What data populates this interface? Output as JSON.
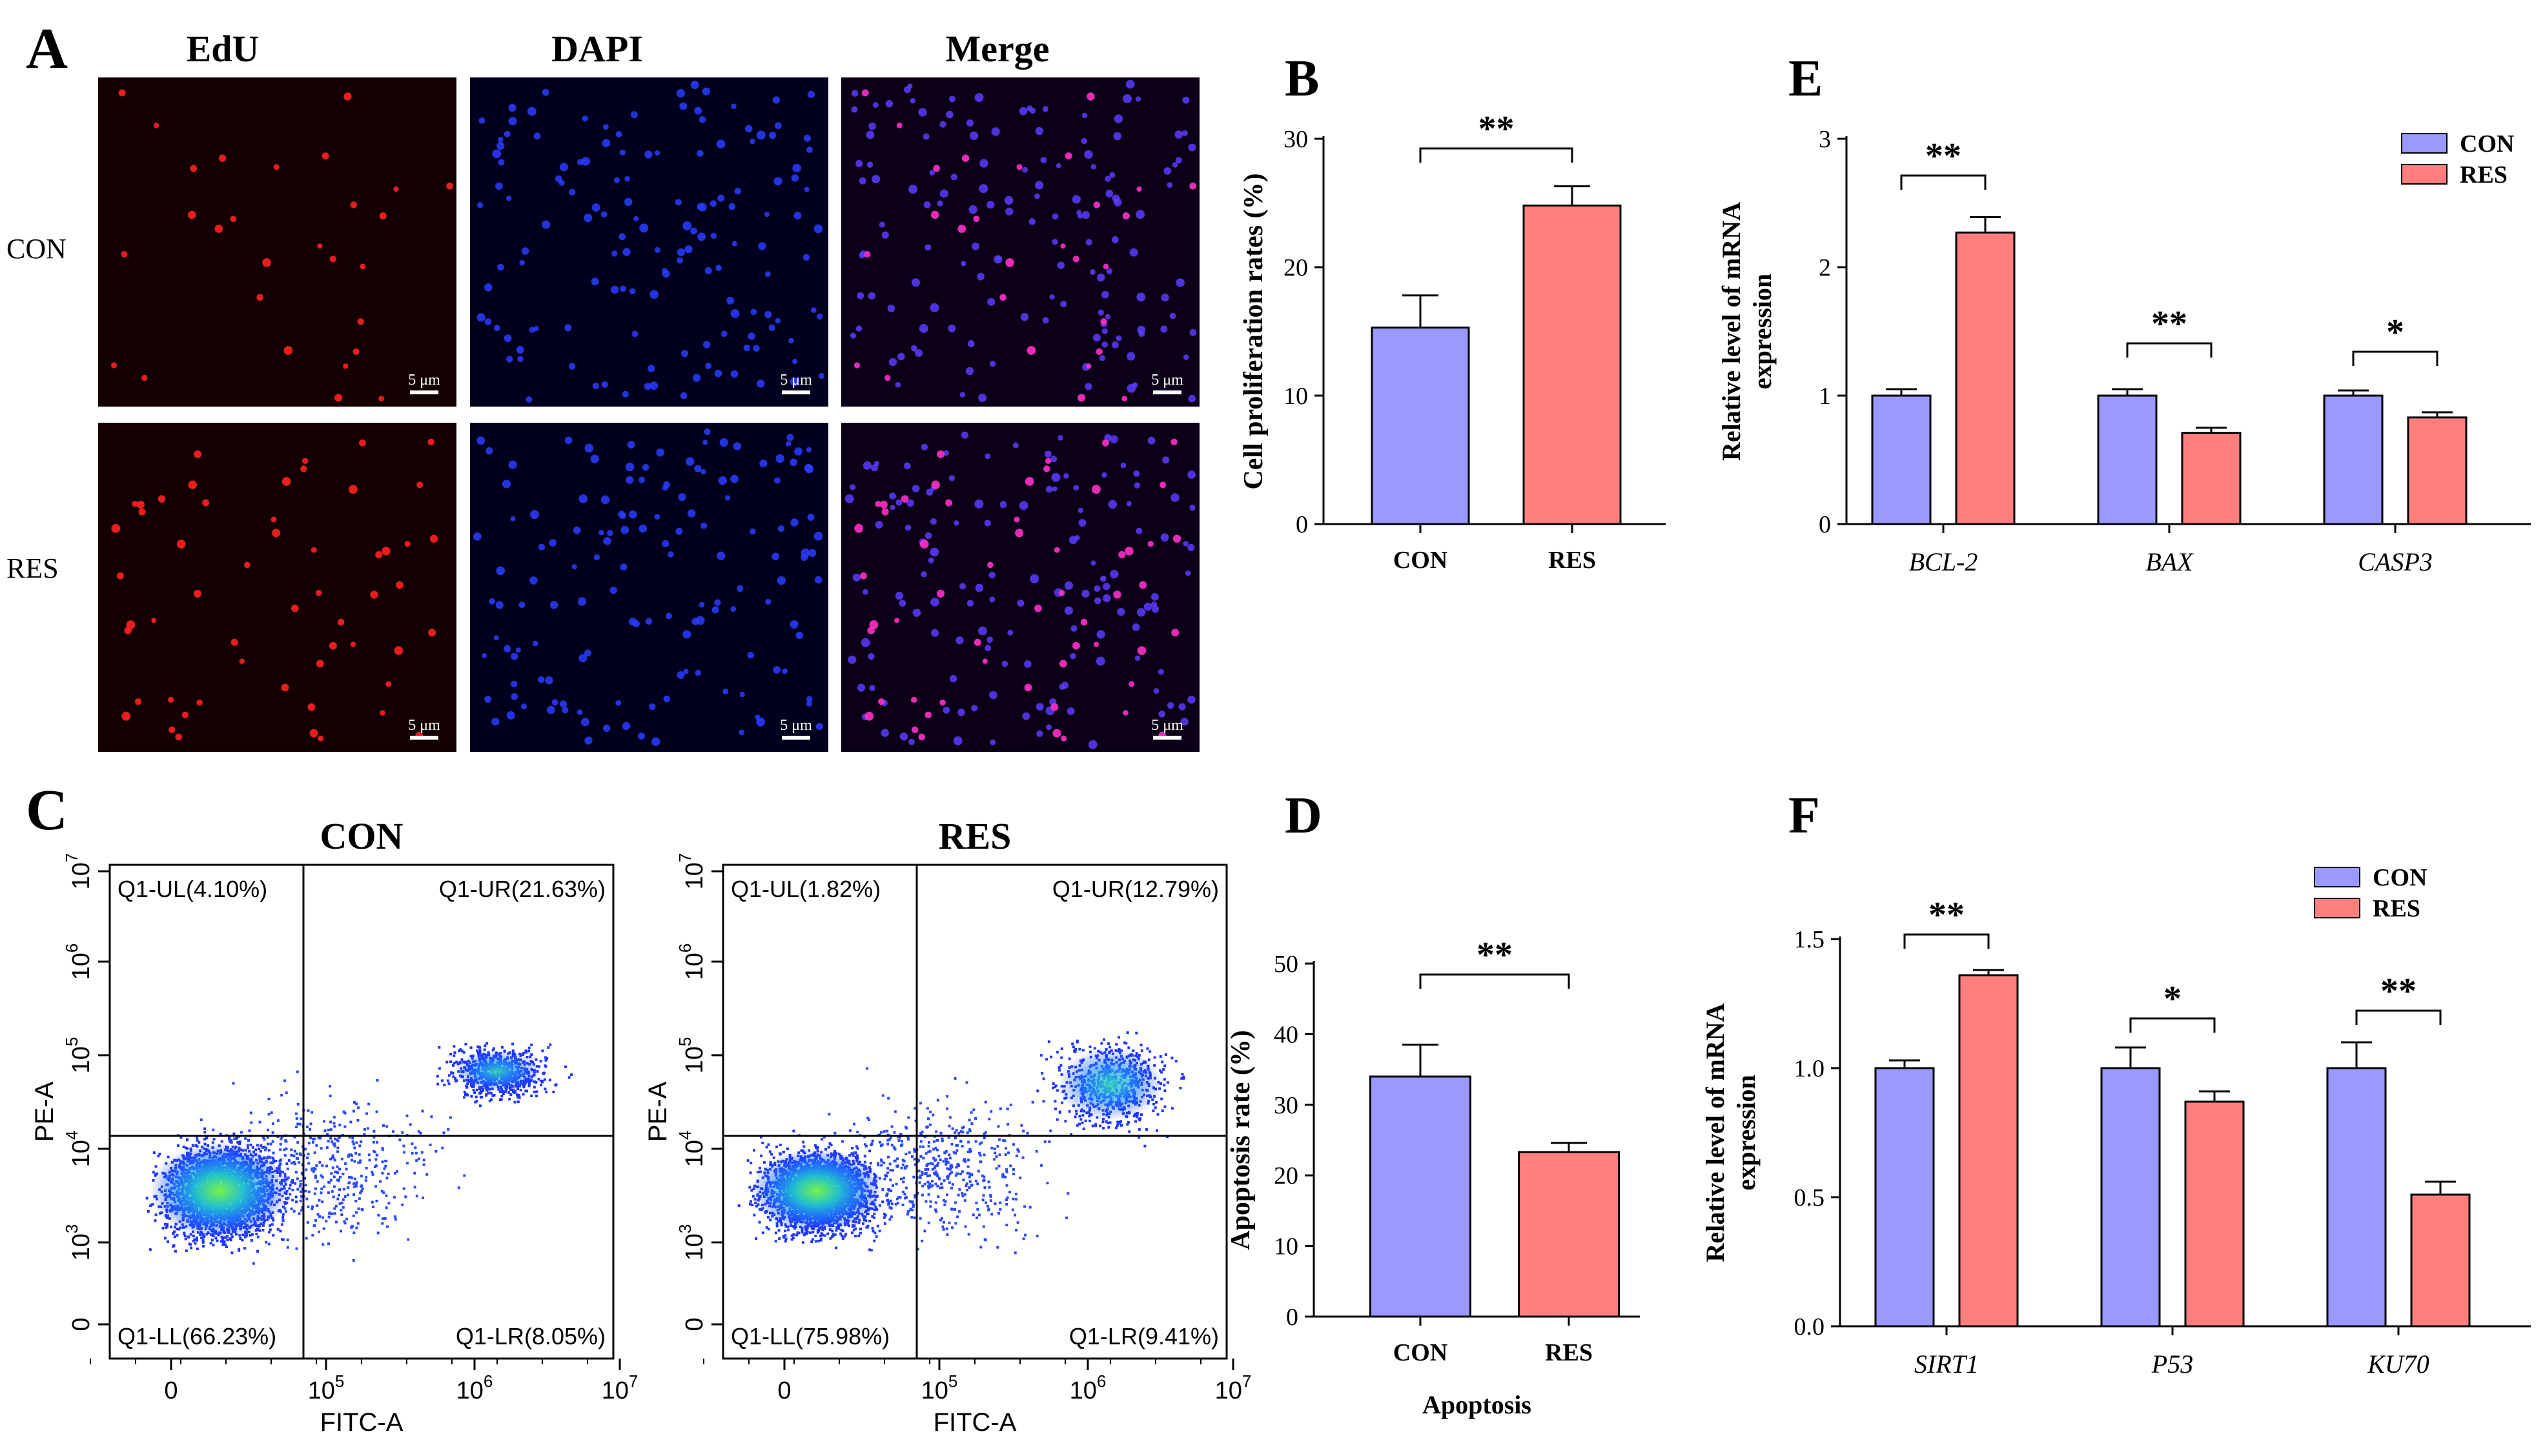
{
  "colors": {
    "con": "#9999ff",
    "res": "#ff7f7f",
    "axis": "#000000"
  },
  "panel_labels": [
    "A",
    "B",
    "C",
    "D",
    "E",
    "F"
  ],
  "panel_a": {
    "col_titles": [
      "EdU",
      "DAPI",
      "Merge"
    ],
    "row_labels": [
      "CON",
      "RES"
    ],
    "scale_bar": "5 μm",
    "channel_icons": [
      "red-nuclei-icon",
      "blue-nuclei-icon",
      "merged-nuclei-icon"
    ]
  },
  "panel_c": {
    "plots": [
      {
        "title": "CON",
        "q_ul": "Q1-UL(4.10%)",
        "q_ur": "Q1-UR(21.63%)",
        "q_ll": "Q1-LL(66.23%)",
        "q_lr": "Q1-LR(8.05%)"
      },
      {
        "title": "RES",
        "q_ul": "Q1-UL(1.82%)",
        "q_ur": "Q1-UR(12.79%)",
        "q_ll": "Q1-LL(75.98%)",
        "q_lr": "Q1-LR(9.41%)"
      }
    ],
    "xlabel": "FITC-A",
    "ylabel": "PE-A",
    "x_ticks": [
      "0",
      "10",
      "10",
      "10"
    ],
    "x_tick_exp": [
      "",
      "5",
      "6",
      "7"
    ],
    "y_ticks": [
      "0",
      "10",
      "10",
      "10",
      "10",
      "10"
    ],
    "y_tick_exp": [
      "",
      "3",
      "4",
      "5",
      "6",
      "7"
    ]
  },
  "chart_data": [
    {
      "id": "B",
      "type": "bar",
      "categories": [
        "CON",
        "RES"
      ],
      "values": [
        15.3,
        24.8
      ],
      "errors": [
        2.5,
        1.5
      ],
      "ylabel": "Cell proliferation rates (%)",
      "xlabel": "",
      "ylim": [
        0,
        30
      ],
      "yticks": [
        0,
        10,
        20,
        30
      ],
      "significance": [
        {
          "text": "**",
          "between": [
            0,
            1
          ]
        }
      ]
    },
    {
      "id": "D",
      "type": "bar",
      "categories": [
        "CON",
        "RES"
      ],
      "values": [
        34.0,
        23.3
      ],
      "errors": [
        4.5,
        1.3
      ],
      "ylabel": "Apoptosis rate (%)",
      "xlabel": "Apoptosis",
      "ylim": [
        0,
        50
      ],
      "yticks": [
        0,
        10,
        20,
        30,
        40,
        50
      ],
      "significance": [
        {
          "text": "**",
          "between": [
            0,
            1
          ]
        }
      ]
    },
    {
      "id": "E",
      "type": "bar",
      "categories": [
        "BCL-2",
        "BAX",
        "CASP3"
      ],
      "series": [
        {
          "name": "CON",
          "values": [
            1.0,
            1.0,
            1.0
          ],
          "errors": [
            0.05,
            0.05,
            0.04
          ]
        },
        {
          "name": "RES",
          "values": [
            2.27,
            0.71,
            0.83
          ],
          "errors": [
            0.12,
            0.04,
            0.04
          ]
        }
      ],
      "ylabel": "Relative level of mRNA expression",
      "ylim": [
        0,
        3
      ],
      "yticks": [
        0,
        1,
        2,
        3
      ],
      "legend": "top-right",
      "significance": [
        {
          "group": 0,
          "text": "**"
        },
        {
          "group": 1,
          "text": "**"
        },
        {
          "group": 2,
          "text": "*"
        }
      ]
    },
    {
      "id": "F",
      "type": "bar",
      "categories": [
        "SIRT1",
        "P53",
        "KU70"
      ],
      "series": [
        {
          "name": "CON",
          "values": [
            1.0,
            1.0,
            1.0
          ],
          "errors": [
            0.03,
            0.08,
            0.1
          ]
        },
        {
          "name": "RES",
          "values": [
            1.36,
            0.87,
            0.51
          ],
          "errors": [
            0.02,
            0.04,
            0.05
          ]
        }
      ],
      "ylabel": "Relative level of mRNA expression",
      "ylim": [
        0,
        1.5
      ],
      "yticks": [
        0.0,
        0.5,
        1.0,
        1.5
      ],
      "legend": "top-right",
      "significance": [
        {
          "group": 0,
          "text": "**"
        },
        {
          "group": 1,
          "text": "*"
        },
        {
          "group": 2,
          "text": "**"
        }
      ]
    }
  ]
}
